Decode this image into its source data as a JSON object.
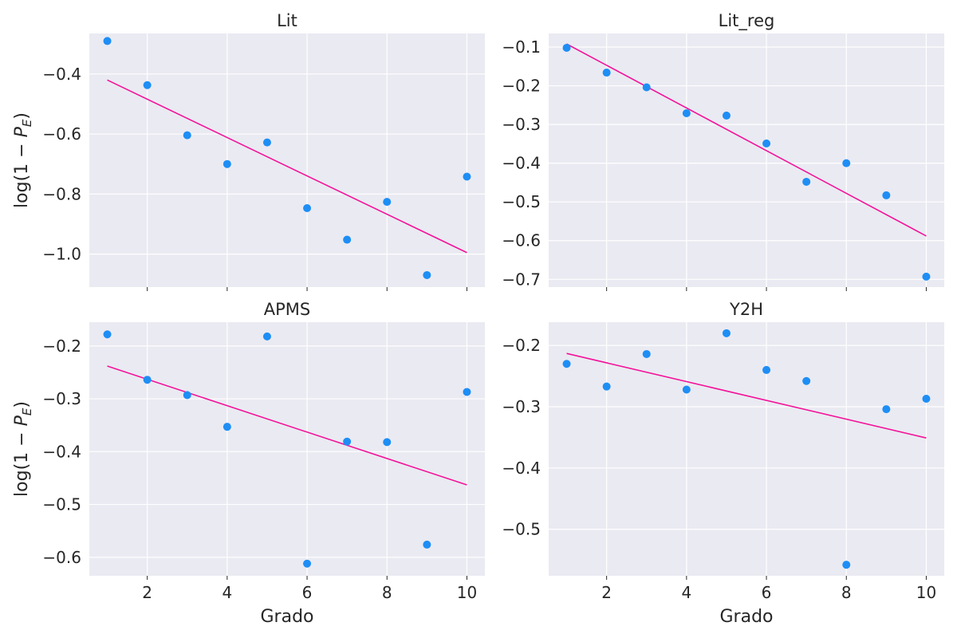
{
  "colors": {
    "point": "#1e8ef5",
    "fit_line": "#f2139a",
    "panel_bg": "#eaeaf2",
    "grid": "#ffffff",
    "text": "#262626"
  },
  "chart_data": [
    {
      "type": "scatter",
      "title": "Lit",
      "xlabel": "",
      "ylabel": "log(1 − P_E)",
      "xlim": [
        0.55,
        10.45
      ],
      "ylim": [
        -1.11,
        -0.265
      ],
      "xticks": [
        2,
        4,
        6,
        8,
        10
      ],
      "show_xticklabels": false,
      "yticks": [
        -1.0,
        -0.8,
        -0.6,
        -0.4
      ],
      "ytick_labels": [
        "−1.0",
        "−0.8",
        "−0.6",
        "−0.4"
      ],
      "grid": true,
      "points": {
        "x": [
          1,
          2,
          3,
          4,
          5,
          6,
          7,
          8,
          9,
          10
        ],
        "y": [
          -0.29,
          -0.437,
          -0.604,
          -0.7,
          -0.628,
          -0.847,
          -0.952,
          -0.826,
          -1.07,
          -0.742
        ]
      },
      "fit_line": {
        "x": [
          1,
          10
        ],
        "y": [
          -0.42,
          -0.995
        ]
      }
    },
    {
      "type": "scatter",
      "title": "Lit_reg",
      "xlabel": "",
      "ylabel": "",
      "xlim": [
        0.55,
        10.45
      ],
      "ylim": [
        -0.72,
        -0.065
      ],
      "xticks": [
        2,
        4,
        6,
        8,
        10
      ],
      "show_xticklabels": false,
      "yticks": [
        -0.7,
        -0.6,
        -0.5,
        -0.4,
        -0.3,
        -0.2,
        -0.1
      ],
      "ytick_labels": [
        "−0.7",
        "−0.6",
        "−0.5",
        "−0.4",
        "−0.3",
        "−0.2",
        "−0.1"
      ],
      "grid": true,
      "points": {
        "x": [
          1,
          2,
          3,
          4,
          5,
          6,
          7,
          8,
          9,
          10
        ],
        "y": [
          -0.102,
          -0.166,
          -0.204,
          -0.271,
          -0.277,
          -0.349,
          -0.448,
          -0.4,
          -0.483,
          -0.693
        ]
      },
      "fit_line": {
        "x": [
          1,
          10
        ],
        "y": [
          -0.092,
          -0.588
        ]
      }
    },
    {
      "type": "scatter",
      "title": "APMS",
      "xlabel": "Grado",
      "ylabel": "log(1 − P_E)",
      "xlim": [
        0.55,
        10.45
      ],
      "ylim": [
        -0.635,
        -0.155
      ],
      "xticks": [
        2,
        4,
        6,
        8,
        10
      ],
      "show_xticklabels": true,
      "xtick_labels": [
        "2",
        "4",
        "6",
        "8",
        "10"
      ],
      "yticks": [
        -0.6,
        -0.5,
        -0.4,
        -0.3,
        -0.2
      ],
      "ytick_labels": [
        "−0.6",
        "−0.5",
        "−0.4",
        "−0.3",
        "−0.2"
      ],
      "grid": true,
      "points": {
        "x": [
          1,
          2,
          3,
          4,
          5,
          6,
          7,
          8,
          9,
          10
        ],
        "y": [
          -0.178,
          -0.264,
          -0.293,
          -0.353,
          -0.182,
          -0.612,
          -0.381,
          -0.382,
          -0.576,
          -0.287
        ]
      },
      "fit_line": {
        "x": [
          1,
          10
        ],
        "y": [
          -0.238,
          -0.463
        ]
      }
    },
    {
      "type": "scatter",
      "title": "Y2H",
      "xlabel": "Grado",
      "ylabel": "",
      "xlim": [
        0.55,
        10.45
      ],
      "ylim": [
        -0.576,
        -0.162
      ],
      "xticks": [
        2,
        4,
        6,
        8,
        10
      ],
      "show_xticklabels": true,
      "xtick_labels": [
        "2",
        "4",
        "6",
        "8",
        "10"
      ],
      "yticks": [
        -0.5,
        -0.4,
        -0.3,
        -0.2
      ],
      "ytick_labels": [
        "−0.5",
        "−0.4",
        "−0.3",
        "−0.2"
      ],
      "grid": true,
      "points": {
        "x": [
          1,
          2,
          3,
          4,
          5,
          6,
          7,
          8,
          9,
          10
        ],
        "y": [
          -0.23,
          -0.267,
          -0.214,
          -0.272,
          -0.18,
          -0.24,
          -0.258,
          -0.558,
          -0.304,
          -0.287
        ]
      },
      "fit_line": {
        "x": [
          1,
          10
        ],
        "y": [
          -0.213,
          -0.351
        ]
      }
    }
  ]
}
